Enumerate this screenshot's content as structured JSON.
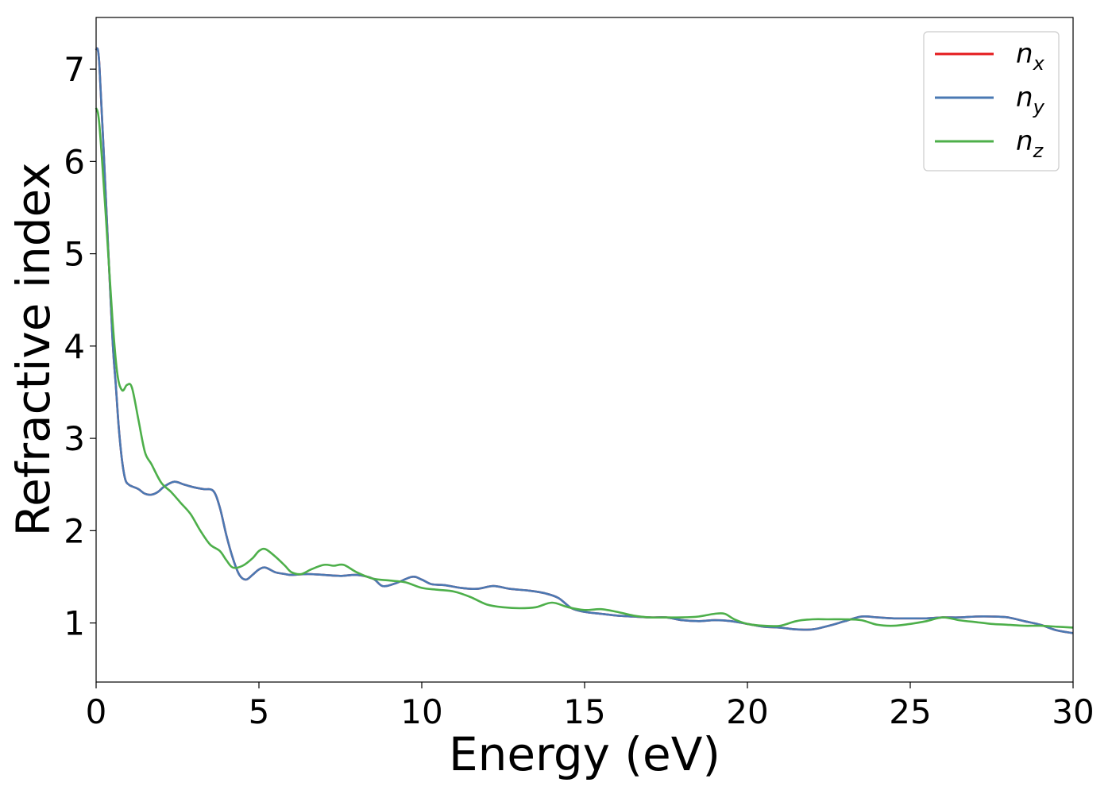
{
  "chart_data": {
    "type": "line",
    "title": "",
    "xlabel": "Energy (eV)",
    "ylabel": "Refractive index",
    "xlim": [
      0,
      30
    ],
    "ylim": [
      0.36,
      7.56
    ],
    "xticks": [
      0,
      5,
      10,
      15,
      20,
      25,
      30
    ],
    "yticks": [
      1,
      2,
      3,
      4,
      5,
      6,
      7
    ],
    "grid": false,
    "legend_position": "top-right",
    "series": [
      {
        "name": "n_x",
        "label_base": "n",
        "label_sub": "x",
        "color": "#e41a1c",
        "x": [
          0,
          0.1,
          0.3,
          0.5,
          0.6,
          0.7,
          0.8,
          0.9,
          1.0,
          1.1,
          1.3,
          1.5,
          1.7,
          1.9,
          2.1,
          2.4,
          2.7,
          3.0,
          3.3,
          3.6,
          3.8,
          4.0,
          4.2,
          4.4,
          4.6,
          4.8,
          5.0,
          5.2,
          5.5,
          5.8,
          6.0,
          6.5,
          7.0,
          7.5,
          8.0,
          8.5,
          8.8,
          9.2,
          9.7,
          10.0,
          10.3,
          10.7,
          11.2,
          11.7,
          12.2,
          12.7,
          13.3,
          13.8,
          14.2,
          14.6,
          15.0,
          15.5,
          16.0,
          16.5,
          17.0,
          17.5,
          18.0,
          18.5,
          19.0,
          19.5,
          20.0,
          20.5,
          21.0,
          21.5,
          22.0,
          22.5,
          23.0,
          23.5,
          24.0,
          24.5,
          25.0,
          25.5,
          26.0,
          26.5,
          27.0,
          27.5,
          28.0,
          28.5,
          29.0,
          29.5,
          30.0
        ],
        "y": [
          7.22,
          7.05,
          5.6,
          4.1,
          3.6,
          3.1,
          2.75,
          2.55,
          2.5,
          2.48,
          2.45,
          2.4,
          2.39,
          2.42,
          2.48,
          2.53,
          2.5,
          2.47,
          2.45,
          2.43,
          2.25,
          1.95,
          1.7,
          1.52,
          1.47,
          1.52,
          1.58,
          1.6,
          1.55,
          1.53,
          1.52,
          1.53,
          1.52,
          1.51,
          1.52,
          1.48,
          1.4,
          1.43,
          1.5,
          1.47,
          1.42,
          1.41,
          1.38,
          1.37,
          1.4,
          1.37,
          1.35,
          1.32,
          1.27,
          1.16,
          1.12,
          1.1,
          1.08,
          1.07,
          1.06,
          1.06,
          1.03,
          1.02,
          1.03,
          1.02,
          0.99,
          0.96,
          0.95,
          0.93,
          0.93,
          0.97,
          1.02,
          1.07,
          1.06,
          1.05,
          1.05,
          1.05,
          1.06,
          1.06,
          1.07,
          1.07,
          1.06,
          1.02,
          0.98,
          0.92,
          0.89
        ]
      },
      {
        "name": "n_y",
        "label_base": "n",
        "label_sub": "y",
        "color": "#4a79b3",
        "x": [
          0,
          0.1,
          0.3,
          0.5,
          0.6,
          0.7,
          0.8,
          0.9,
          1.0,
          1.1,
          1.3,
          1.5,
          1.7,
          1.9,
          2.1,
          2.4,
          2.7,
          3.0,
          3.3,
          3.6,
          3.8,
          4.0,
          4.2,
          4.4,
          4.6,
          4.8,
          5.0,
          5.2,
          5.5,
          5.8,
          6.0,
          6.5,
          7.0,
          7.5,
          8.0,
          8.5,
          8.8,
          9.2,
          9.7,
          10.0,
          10.3,
          10.7,
          11.2,
          11.7,
          12.2,
          12.7,
          13.3,
          13.8,
          14.2,
          14.6,
          15.0,
          15.5,
          16.0,
          16.5,
          17.0,
          17.5,
          18.0,
          18.5,
          19.0,
          19.5,
          20.0,
          20.5,
          21.0,
          21.5,
          22.0,
          22.5,
          23.0,
          23.5,
          24.0,
          24.5,
          25.0,
          25.5,
          26.0,
          26.5,
          27.0,
          27.5,
          28.0,
          28.5,
          29.0,
          29.5,
          30.0
        ],
        "y": [
          7.22,
          7.05,
          5.6,
          4.1,
          3.6,
          3.1,
          2.75,
          2.55,
          2.5,
          2.48,
          2.45,
          2.4,
          2.39,
          2.42,
          2.48,
          2.53,
          2.5,
          2.47,
          2.45,
          2.43,
          2.25,
          1.95,
          1.7,
          1.52,
          1.47,
          1.52,
          1.58,
          1.6,
          1.55,
          1.53,
          1.52,
          1.53,
          1.52,
          1.51,
          1.52,
          1.48,
          1.4,
          1.43,
          1.5,
          1.47,
          1.42,
          1.41,
          1.38,
          1.37,
          1.4,
          1.37,
          1.35,
          1.32,
          1.27,
          1.16,
          1.12,
          1.1,
          1.08,
          1.07,
          1.06,
          1.06,
          1.03,
          1.02,
          1.03,
          1.02,
          0.99,
          0.96,
          0.95,
          0.93,
          0.93,
          0.97,
          1.02,
          1.07,
          1.06,
          1.05,
          1.05,
          1.05,
          1.06,
          1.06,
          1.07,
          1.07,
          1.06,
          1.02,
          0.98,
          0.92,
          0.89
        ]
      },
      {
        "name": "n_z",
        "label_base": "n",
        "label_sub": "z",
        "color": "#4daf4a",
        "x": [
          0,
          0.1,
          0.3,
          0.5,
          0.65,
          0.8,
          0.95,
          1.1,
          1.3,
          1.5,
          1.7,
          2.0,
          2.3,
          2.6,
          2.9,
          3.2,
          3.5,
          3.8,
          4.0,
          4.2,
          4.5,
          4.8,
          5.0,
          5.2,
          5.5,
          5.8,
          6.0,
          6.3,
          6.6,
          7.0,
          7.3,
          7.6,
          8.0,
          8.5,
          9.0,
          9.5,
          10.0,
          10.5,
          11.0,
          11.5,
          12.0,
          12.5,
          13.0,
          13.5,
          14.0,
          14.5,
          15.0,
          15.5,
          16.0,
          16.5,
          17.0,
          17.5,
          18.0,
          18.5,
          19.0,
          19.3,
          19.6,
          20.0,
          20.5,
          21.0,
          21.5,
          22.0,
          22.5,
          23.0,
          23.5,
          24.0,
          24.5,
          25.0,
          25.5,
          26.0,
          26.5,
          27.0,
          27.5,
          28.0,
          28.5,
          29.0,
          29.5,
          30.0
        ],
        "y": [
          6.58,
          6.4,
          5.4,
          4.3,
          3.7,
          3.52,
          3.58,
          3.55,
          3.2,
          2.85,
          2.72,
          2.52,
          2.42,
          2.3,
          2.18,
          2.0,
          1.85,
          1.78,
          1.68,
          1.6,
          1.62,
          1.7,
          1.78,
          1.8,
          1.72,
          1.62,
          1.55,
          1.53,
          1.58,
          1.63,
          1.62,
          1.63,
          1.55,
          1.48,
          1.46,
          1.44,
          1.38,
          1.36,
          1.34,
          1.28,
          1.2,
          1.17,
          1.16,
          1.17,
          1.22,
          1.17,
          1.14,
          1.15,
          1.12,
          1.08,
          1.06,
          1.06,
          1.06,
          1.07,
          1.1,
          1.1,
          1.04,
          0.99,
          0.97,
          0.97,
          1.02,
          1.04,
          1.04,
          1.04,
          1.03,
          0.98,
          0.97,
          0.99,
          1.02,
          1.06,
          1.03,
          1.01,
          0.99,
          0.98,
          0.97,
          0.97,
          0.96,
          0.95
        ]
      }
    ]
  }
}
